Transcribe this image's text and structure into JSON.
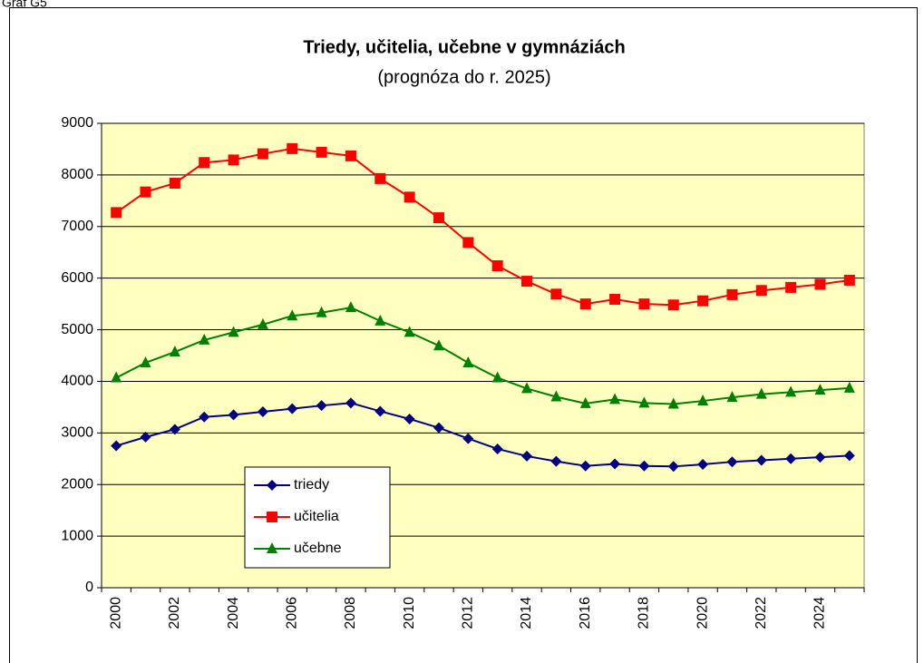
{
  "page_label": "Graf G5",
  "chart_data": {
    "type": "line",
    "title": "Triedy, učitelia, učebne v gymnáziách",
    "subtitle": "(prognóza do r. 2025)",
    "categories": [
      "2000",
      null,
      "2002",
      null,
      "2004",
      null,
      "2006",
      null,
      "2008",
      null,
      "2010",
      null,
      "2012",
      null,
      "2014",
      null,
      "2016",
      null,
      "2018",
      null,
      "2020",
      null,
      "2022",
      null,
      "2024",
      null
    ],
    "series": [
      {
        "name": "triedy",
        "color": "#000080",
        "marker": "diamond",
        "values": [
          2750,
          2920,
          3070,
          3310,
          3350,
          3410,
          3470,
          3530,
          3580,
          3420,
          3270,
          3100,
          2890,
          2690,
          2550,
          2450,
          2360,
          2400,
          2360,
          2350,
          2390,
          2440,
          2470,
          2500,
          2530,
          2560
        ]
      },
      {
        "name": "učitelia",
        "color": "#ff0000",
        "marker": "square",
        "values": [
          7270,
          7670,
          7840,
          8240,
          8290,
          8410,
          8510,
          8440,
          8370,
          7930,
          7570,
          7170,
          6690,
          6240,
          5940,
          5690,
          5500,
          5590,
          5500,
          5480,
          5560,
          5680,
          5760,
          5820,
          5880,
          5960
        ]
      },
      {
        "name": "učebne",
        "color": "#008000",
        "marker": "triangle",
        "values": [
          4070,
          4360,
          4570,
          4800,
          4950,
          5100,
          5270,
          5330,
          5430,
          5170,
          4950,
          4690,
          4360,
          4070,
          3860,
          3700,
          3570,
          3650,
          3580,
          3560,
          3620,
          3690,
          3750,
          3790,
          3830,
          3870
        ]
      }
    ],
    "ylim": [
      0,
      9000
    ],
    "yticks": [
      0,
      1000,
      2000,
      3000,
      4000,
      5000,
      6000,
      7000,
      8000,
      9000
    ],
    "grid": true,
    "plot_background": "#ffffc0",
    "legend_position": "lower left"
  }
}
